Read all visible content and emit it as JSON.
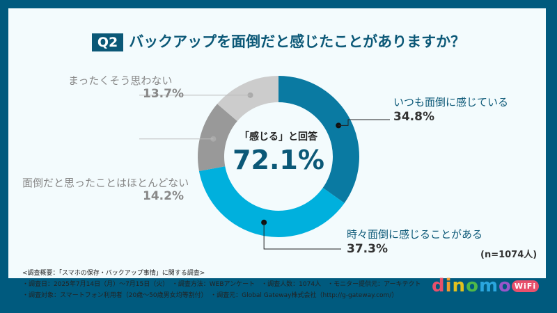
{
  "title": {
    "badge": "Q2",
    "text": "バックアップを面倒だと感じたことがありますか？"
  },
  "center": {
    "label": "「感じる」と回答",
    "value": "72.1%"
  },
  "sample": "(n=1074人)",
  "notes": [
    "<調査概要：「スマホの保存・バックアップ事情」に関する調査>",
    "・調査日：2025年7月14日（月）〜7月15日（火）　・調査方法：WEBアンケート　・調査人数：1074人　・モニター提供元：アーキテクト",
    "・調査対象：スマートフォン利用者（20歳〜50歳男女均等割付）　・調査元：Global Gateway株式会社（http://g-gateway.com/）"
  ],
  "logo": {
    "text": "dinomo",
    "badge": "WiFi"
  },
  "chart_data": {
    "type": "pie",
    "donut": true,
    "start": "top",
    "direction": "clockwise",
    "categories": [
      "いつも面倒に感じている",
      "時々面倒に感じることがある",
      "面倒だと思ったことはほとんどない",
      "まったくそう思わない"
    ],
    "values": [
      34.8,
      37.3,
      14.2,
      13.7
    ],
    "labels": [
      "34.8%",
      "37.3%",
      "14.2%",
      "13.7%"
    ],
    "colors": [
      "#0a7aa2",
      "#00b0dd",
      "#999999",
      "#cccccc"
    ]
  }
}
